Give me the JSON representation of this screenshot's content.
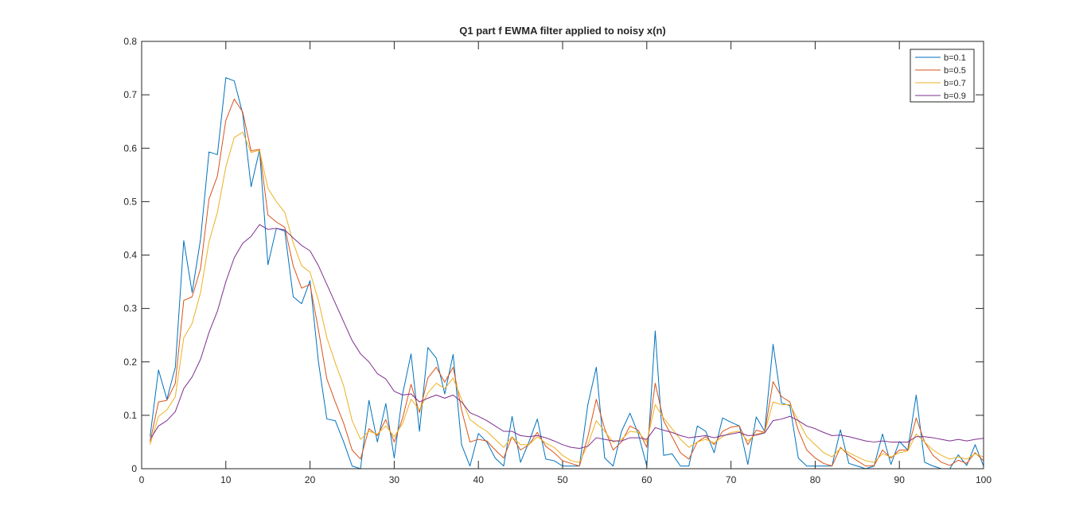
{
  "chart_data": {
    "type": "line",
    "title": "Q1 part f EWMA filter applied to noisy x(n)",
    "xlabel": "",
    "ylabel": "",
    "xlim": [
      0,
      100
    ],
    "ylim": [
      0,
      0.8
    ],
    "xticks": [
      0,
      10,
      20,
      30,
      40,
      50,
      60,
      70,
      80,
      90,
      100
    ],
    "yticks": [
      0,
      0.1,
      0.2,
      0.3,
      0.4,
      0.5,
      0.6,
      0.7,
      0.8
    ],
    "xtick_labels": [
      "0",
      "10",
      "20",
      "30",
      "40",
      "50",
      "60",
      "70",
      "80",
      "90",
      "100"
    ],
    "ytick_labels": [
      "0",
      "0.1",
      "0.2",
      "0.3",
      "0.4",
      "0.5",
      "0.6",
      "0.7",
      "0.8"
    ],
    "grid": false,
    "legend_position": "top-right",
    "x": [
      1,
      2,
      3,
      4,
      5,
      6,
      7,
      8,
      9,
      10,
      11,
      12,
      13,
      14,
      15,
      16,
      17,
      18,
      19,
      20,
      21,
      22,
      23,
      24,
      25,
      26,
      27,
      28,
      29,
      30,
      31,
      32,
      33,
      34,
      35,
      36,
      37,
      38,
      39,
      40,
      41,
      42,
      43,
      44,
      45,
      46,
      47,
      48,
      49,
      50,
      51,
      52,
      53,
      54,
      55,
      56,
      57,
      58,
      59,
      60,
      61,
      62,
      63,
      64,
      65,
      66,
      67,
      68,
      69,
      70,
      71,
      72,
      73,
      74,
      75,
      76,
      77,
      78,
      79,
      80,
      81,
      82,
      83,
      84,
      85,
      86,
      87,
      88,
      89,
      90,
      91,
      92,
      93,
      94,
      95,
      96,
      97,
      98,
      99,
      100
    ],
    "series": [
      {
        "name": "b=0.1",
        "color": "#0072BD",
        "values": [
          0.06,
          0.185,
          0.13,
          0.19,
          0.427,
          0.33,
          0.43,
          0.593,
          0.588,
          0.732,
          0.726,
          0.665,
          0.528,
          0.597,
          0.382,
          0.45,
          0.445,
          0.322,
          0.309,
          0.352,
          0.2,
          0.093,
          0.09,
          0.05,
          0.005,
          0.0,
          0.128,
          0.05,
          0.122,
          0.02,
          0.14,
          0.215,
          0.07,
          0.227,
          0.207,
          0.14,
          0.214,
          0.045,
          0.005,
          0.066,
          0.05,
          0.02,
          0.005,
          0.098,
          0.012,
          0.05,
          0.093,
          0.018,
          0.015,
          0.005,
          0.005,
          0.005,
          0.12,
          0.19,
          0.02,
          0.005,
          0.07,
          0.104,
          0.065,
          0.005,
          0.258,
          0.025,
          0.028,
          0.005,
          0.005,
          0.08,
          0.07,
          0.03,
          0.095,
          0.087,
          0.08,
          0.008,
          0.097,
          0.07,
          0.233,
          0.123,
          0.118,
          0.02,
          0.005,
          0.005,
          0.005,
          0.005,
          0.073,
          0.01,
          0.005,
          0.0,
          0.005,
          0.065,
          0.008,
          0.051,
          0.035,
          0.138,
          0.012,
          0.005,
          0.0,
          0.0,
          0.026,
          0.006,
          0.045,
          0.005
        ]
      },
      {
        "name": "b=0.5",
        "color": "#D95319",
        "values": [
          0.05,
          0.125,
          0.128,
          0.16,
          0.315,
          0.322,
          0.375,
          0.505,
          0.548,
          0.652,
          0.692,
          0.668,
          0.595,
          0.598,
          0.475,
          0.462,
          0.452,
          0.38,
          0.338,
          0.345,
          0.26,
          0.168,
          0.125,
          0.085,
          0.035,
          0.018,
          0.075,
          0.062,
          0.092,
          0.05,
          0.095,
          0.158,
          0.105,
          0.17,
          0.19,
          0.162,
          0.19,
          0.11,
          0.05,
          0.055,
          0.052,
          0.035,
          0.02,
          0.06,
          0.035,
          0.045,
          0.068,
          0.042,
          0.03,
          0.015,
          0.01,
          0.005,
          0.06,
          0.13,
          0.075,
          0.035,
          0.05,
          0.08,
          0.072,
          0.04,
          0.16,
          0.09,
          0.06,
          0.03,
          0.018,
          0.05,
          0.06,
          0.045,
          0.07,
          0.078,
          0.08,
          0.045,
          0.072,
          0.068,
          0.163,
          0.135,
          0.125,
          0.072,
          0.035,
          0.02,
          0.01,
          0.005,
          0.04,
          0.025,
          0.015,
          0.005,
          0.006,
          0.035,
          0.02,
          0.035,
          0.035,
          0.095,
          0.05,
          0.025,
          0.012,
          0.006,
          0.016,
          0.01,
          0.03,
          0.015
        ]
      },
      {
        "name": "b=0.7",
        "color": "#EDB120",
        "values": [
          0.045,
          0.098,
          0.11,
          0.135,
          0.245,
          0.272,
          0.33,
          0.425,
          0.48,
          0.565,
          0.62,
          0.63,
          0.592,
          0.596,
          0.525,
          0.5,
          0.48,
          0.423,
          0.38,
          0.368,
          0.315,
          0.245,
          0.198,
          0.155,
          0.09,
          0.055,
          0.07,
          0.065,
          0.08,
          0.06,
          0.085,
          0.13,
          0.11,
          0.142,
          0.16,
          0.15,
          0.17,
          0.13,
          0.092,
          0.08,
          0.07,
          0.055,
          0.04,
          0.06,
          0.045,
          0.045,
          0.06,
          0.048,
          0.04,
          0.025,
          0.015,
          0.012,
          0.045,
          0.09,
          0.07,
          0.05,
          0.055,
          0.07,
          0.068,
          0.05,
          0.12,
          0.095,
          0.075,
          0.055,
          0.04,
          0.05,
          0.055,
          0.048,
          0.06,
          0.068,
          0.07,
          0.052,
          0.065,
          0.068,
          0.125,
          0.12,
          0.12,
          0.09,
          0.06,
          0.045,
          0.03,
          0.022,
          0.038,
          0.03,
          0.022,
          0.015,
          0.012,
          0.028,
          0.022,
          0.03,
          0.033,
          0.065,
          0.05,
          0.035,
          0.025,
          0.018,
          0.022,
          0.018,
          0.028,
          0.022
        ]
      },
      {
        "name": "b=0.9",
        "color": "#7E2F8E",
        "values": [
          0.055,
          0.08,
          0.09,
          0.107,
          0.15,
          0.172,
          0.205,
          0.255,
          0.295,
          0.35,
          0.395,
          0.422,
          0.435,
          0.457,
          0.448,
          0.45,
          0.447,
          0.432,
          0.418,
          0.408,
          0.38,
          0.345,
          0.31,
          0.275,
          0.24,
          0.215,
          0.2,
          0.178,
          0.168,
          0.145,
          0.138,
          0.14,
          0.125,
          0.132,
          0.138,
          0.132,
          0.138,
          0.125,
          0.105,
          0.098,
          0.09,
          0.08,
          0.07,
          0.07,
          0.062,
          0.06,
          0.062,
          0.058,
          0.052,
          0.045,
          0.04,
          0.038,
          0.042,
          0.058,
          0.055,
          0.052,
          0.052,
          0.058,
          0.058,
          0.055,
          0.077,
          0.072,
          0.068,
          0.062,
          0.058,
          0.06,
          0.062,
          0.058,
          0.062,
          0.065,
          0.068,
          0.062,
          0.063,
          0.067,
          0.09,
          0.093,
          0.098,
          0.09,
          0.08,
          0.075,
          0.068,
          0.062,
          0.063,
          0.06,
          0.056,
          0.052,
          0.05,
          0.052,
          0.05,
          0.05,
          0.05,
          0.06,
          0.06,
          0.058,
          0.055,
          0.052,
          0.055,
          0.052,
          0.055,
          0.057
        ]
      }
    ]
  }
}
